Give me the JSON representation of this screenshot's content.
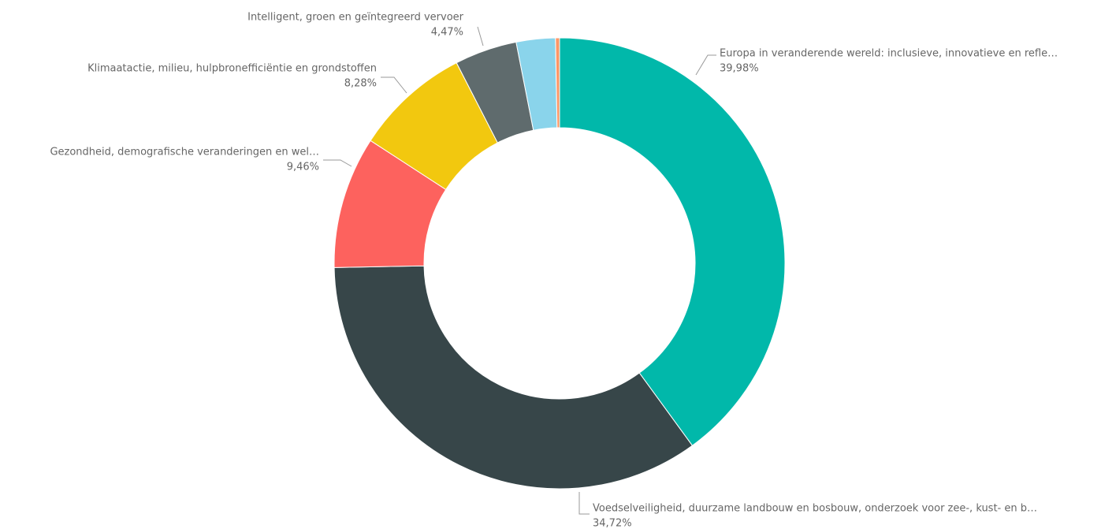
{
  "chart_data": {
    "type": "donut",
    "categories": [
      "Europa in veranderende wereld: inclusieve, innovatieve en refle…",
      "Voedselveiligheid, duurzame landbouw en bosbouw, onderzoek voor zee-, kust- en b…",
      "Gezondheid, demografische veranderingen en wel…",
      "Klimaatactie, milieu, hulpbronefficiëntie en grondstoffen",
      "Intelligent, groen en geïntegreerd vervoer",
      null,
      null
    ],
    "values": [
      39.98,
      34.72,
      9.46,
      8.28,
      4.47,
      2.8,
      0.29
    ],
    "value_labels": [
      "39,98%",
      "34,72%",
      "9,46%",
      "8,28%",
      "4,47%",
      null,
      null
    ],
    "colors": [
      "#01b8aa",
      "#374649",
      "#fd625e",
      "#f2c80f",
      "#5f6b6d",
      "#8ad4eb",
      "#fe9666"
    ]
  }
}
